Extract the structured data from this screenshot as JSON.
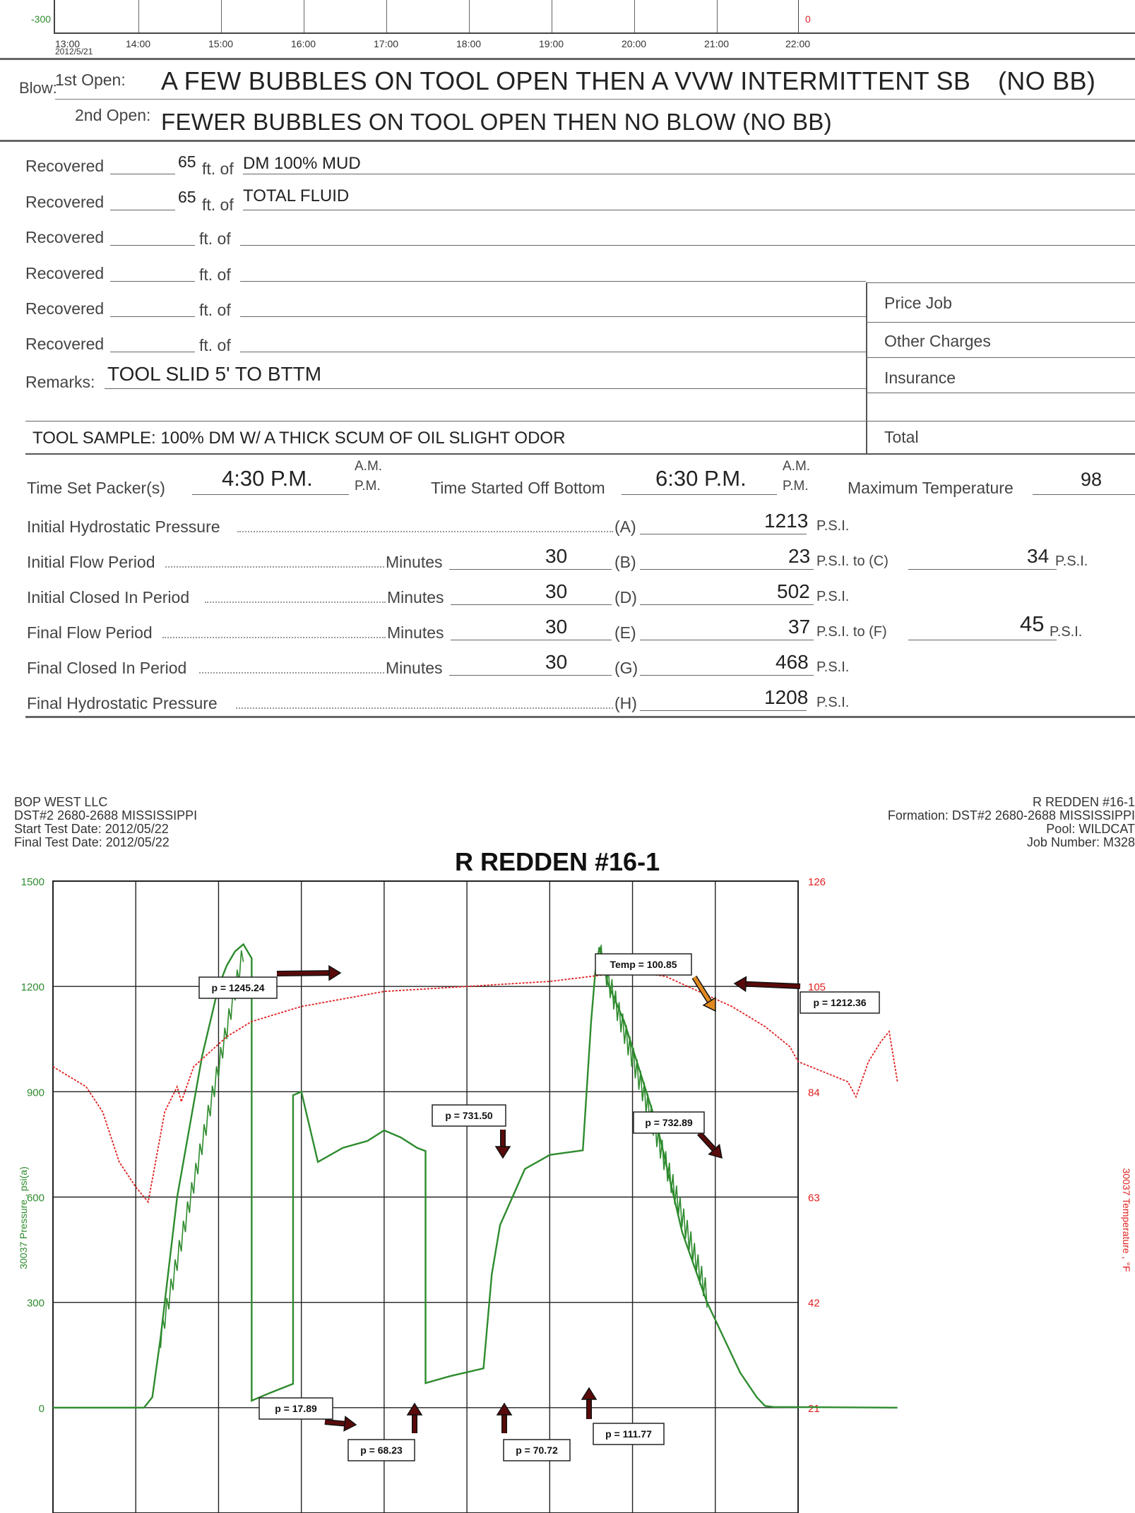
{
  "top_chart": {
    "y_left_min": "-300",
    "y_right_min": "0",
    "x_ticks": [
      "13:00",
      "14:00",
      "15:00",
      "16:00",
      "17:00",
      "18:00",
      "19:00",
      "20:00",
      "21:00",
      "22:00"
    ],
    "x_date": "2012/5/21"
  },
  "blow": {
    "label": "Blow:",
    "first_label": "1st Open:",
    "first_text": "A FEW BUBBLES ON TOOL OPEN THEN A VVW INTERMITTENT SB",
    "first_suffix": "(NO BB)",
    "second_label": "2nd Open:",
    "second_text": "FEWER BUBBLES ON TOOL OPEN THEN NO BLOW (NO BB)"
  },
  "recovered": {
    "label": "Recovered",
    "ft_of": "ft. of",
    "rows": [
      {
        "ft": "65",
        "desc": "DM 100% MUD"
      },
      {
        "ft": "65",
        "desc": "TOTAL FLUID"
      },
      {
        "ft": "",
        "desc": ""
      },
      {
        "ft": "",
        "desc": ""
      },
      {
        "ft": "",
        "desc": ""
      },
      {
        "ft": "",
        "desc": ""
      }
    ]
  },
  "remarks": {
    "label": "Remarks:",
    "text": "TOOL SLID 5' TO BTTM",
    "tool_sample": "TOOL SAMPLE: 100% DM W/ A THICK SCUM OF OIL SLIGHT ODOR"
  },
  "charges": {
    "price_job": "Price Job",
    "other_charges": "Other Charges",
    "insurance": "Insurance",
    "total": "Total"
  },
  "times": {
    "set_packer_label": "Time Set Packer(s)",
    "set_packer_value": "4:30 P.M.",
    "off_bottom_label": "Time Started Off Bottom",
    "off_bottom_value": "6:30 P.M.",
    "am": "A.M.",
    "pm": "P.M.",
    "max_temp_label": "Maximum Temperature",
    "max_temp_value": "98"
  },
  "pressures": {
    "minutes": "Minutes",
    "psi": "P.S.I.",
    "rows": [
      {
        "label": "Initial Hydrostatic Pressure",
        "minutes": "",
        "code": "(A)",
        "p1": "1213",
        "to": "",
        "p2": ""
      },
      {
        "label": "Initial Flow Period",
        "minutes": "30",
        "code": "(B)",
        "p1": "23",
        "to": "P.S.I. to (C)",
        "p2": "34"
      },
      {
        "label": "Initial Closed In Period",
        "minutes": "30",
        "code": "(D)",
        "p1": "502",
        "to": "",
        "p2": ""
      },
      {
        "label": "Final Flow Period",
        "minutes": "30",
        "code": "(E)",
        "p1": "37",
        "to": "P.S.I. to (F)",
        "p2": "45"
      },
      {
        "label": "Final Closed In Period",
        "minutes": "30",
        "code": "(G)",
        "p1": "468",
        "to": "",
        "p2": ""
      },
      {
        "label": "Final Hydrostatic Pressure",
        "minutes": "",
        "code": "(H)",
        "p1": "1208",
        "to": "",
        "p2": ""
      }
    ]
  },
  "header": {
    "company": "BOP WEST LLC",
    "dst": "DST#2 2680-2688 MISSISSIPPI",
    "start_date": "Start Test Date: 2012/05/22",
    "final_date": "Final Test Date: 2012/05/22",
    "well_right": "R REDDEN #16-1",
    "formation": "Formation: DST#2 2680-2688 MISSISSIPPI",
    "pool": "Pool: WILDCAT",
    "job": "Job Number: M328"
  },
  "chart_data": {
    "type": "line",
    "title": "R REDDEN #16-1",
    "ylabel": "30037 Pressure , psi(a)",
    "y2label": "30037 Temperature , °F",
    "ylim": [
      -300,
      1500
    ],
    "y2lim": [
      0,
      126
    ],
    "y_ticks": [
      "1500",
      "1200",
      "900",
      "600",
      "300",
      "0"
    ],
    "y2_ticks": [
      "126",
      "105",
      "84",
      "63",
      "42",
      "21"
    ],
    "grid": true,
    "series": [
      {
        "color": "#2e8b2e",
        "points": [
          [
            0.0,
            0
          ],
          [
            1.1,
            0
          ],
          [
            1.2,
            30
          ],
          [
            1.3,
            200
          ],
          [
            1.5,
            600
          ],
          [
            1.8,
            1000
          ],
          [
            2.0,
            1200
          ],
          [
            2.1,
            1260
          ],
          [
            2.2,
            1300
          ],
          [
            2.3,
            1320
          ],
          [
            2.35,
            1300
          ],
          [
            2.4,
            1280
          ],
          [
            2.4,
            20
          ],
          [
            2.6,
            40
          ],
          [
            2.9,
            68
          ],
          [
            2.9,
            890
          ],
          [
            3.0,
            900
          ],
          [
            3.2,
            700
          ],
          [
            3.5,
            740
          ],
          [
            3.8,
            760
          ],
          [
            4.0,
            790
          ],
          [
            4.2,
            770
          ],
          [
            4.4,
            740
          ],
          [
            4.5,
            731
          ],
          [
            4.5,
            70
          ],
          [
            4.8,
            90
          ],
          [
            5.2,
            112
          ],
          [
            5.3,
            380
          ],
          [
            5.4,
            520
          ],
          [
            5.7,
            680
          ],
          [
            6.0,
            720
          ],
          [
            6.4,
            733
          ],
          [
            6.5,
            1100
          ],
          [
            6.55,
            1240
          ],
          [
            6.6,
            1312
          ],
          [
            6.7,
            1210
          ],
          [
            6.9,
            1100
          ],
          [
            7.1,
            950
          ],
          [
            7.3,
            800
          ],
          [
            7.6,
            500
          ],
          [
            7.9,
            300
          ],
          [
            8.1,
            200
          ],
          [
            8.3,
            100
          ],
          [
            8.5,
            30
          ],
          [
            8.6,
            5
          ],
          [
            8.7,
            2
          ],
          [
            10.2,
            0
          ]
        ]
      },
      {
        "color": "#e02020",
        "points": [
          [
            0.0,
            89
          ],
          [
            0.2,
            87
          ],
          [
            0.4,
            85
          ],
          [
            0.6,
            80
          ],
          [
            0.8,
            70
          ],
          [
            1.0,
            65
          ],
          [
            1.15,
            62
          ],
          [
            1.35,
            80
          ],
          [
            1.5,
            85
          ],
          [
            1.55,
            82
          ],
          [
            1.7,
            89
          ],
          [
            1.9,
            92
          ],
          [
            2.1,
            95
          ],
          [
            2.4,
            98
          ],
          [
            3.0,
            101
          ],
          [
            4.0,
            104
          ],
          [
            5.0,
            105
          ],
          [
            6.0,
            106
          ],
          [
            6.5,
            107
          ],
          [
            7.0,
            108
          ],
          [
            7.4,
            107
          ],
          [
            7.8,
            104
          ],
          [
            8.2,
            101
          ],
          [
            8.6,
            97
          ],
          [
            8.9,
            93
          ],
          [
            9.0,
            90
          ],
          [
            9.3,
            88
          ],
          [
            9.6,
            86
          ],
          [
            9.7,
            83
          ],
          [
            9.85,
            90
          ],
          [
            10.0,
            94
          ],
          [
            10.1,
            96
          ],
          [
            10.2,
            86
          ]
        ]
      }
    ],
    "annotations": [
      "p = 1245.24",
      "Temp = 100.85",
      "p = 1212.36",
      "p = 731.50",
      "p = 732.89",
      "p = 17.89",
      "p = 68.23",
      "p = 70.72",
      "p = 111.77"
    ]
  }
}
